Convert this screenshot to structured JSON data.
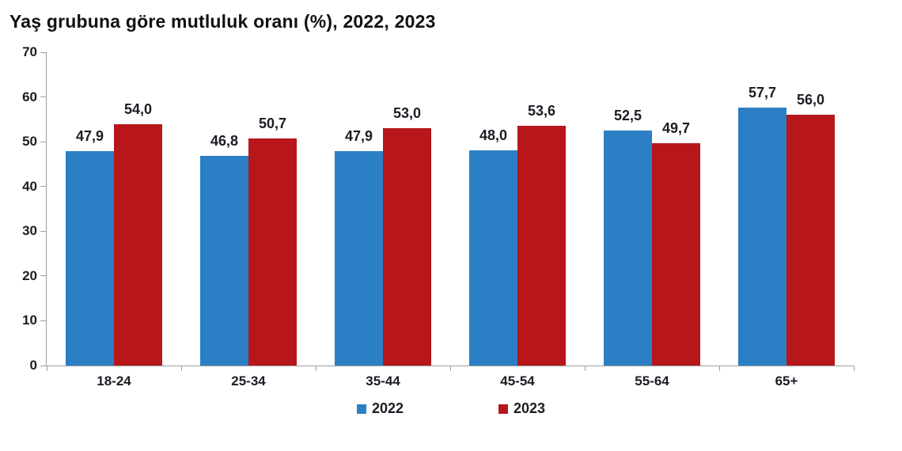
{
  "chart_data": {
    "type": "bar",
    "title": "Yaş grubuna göre mutluluk oranı (%), 2022, 2023",
    "categories": [
      "18-24",
      "25-34",
      "35-44",
      "45-54",
      "55-64",
      "65+"
    ],
    "series": [
      {
        "name": "2022",
        "color": "#2b7fc4",
        "values": [
          47.9,
          46.8,
          47.9,
          48.0,
          52.5,
          57.7
        ]
      },
      {
        "name": "2023",
        "color": "#b7161b",
        "values": [
          54.0,
          50.7,
          53.0,
          53.6,
          49.7,
          56.0
        ]
      }
    ],
    "decimal_separator": ",",
    "ylim": [
      0,
      70
    ],
    "yticks": [
      0,
      10,
      20,
      30,
      40,
      50,
      60,
      70
    ],
    "grid": false,
    "legend_position": "bottom-center"
  },
  "legend": [
    {
      "label": "2022",
      "color": "#2b7fc4"
    },
    {
      "label": "2023",
      "color": "#b7161b"
    }
  ],
  "colors": {
    "series_2022": "#2b7fc4",
    "series_2023": "#b7161b",
    "axis": "#9e9e9e",
    "text": "#1c1c24",
    "background": "#ffffff"
  }
}
